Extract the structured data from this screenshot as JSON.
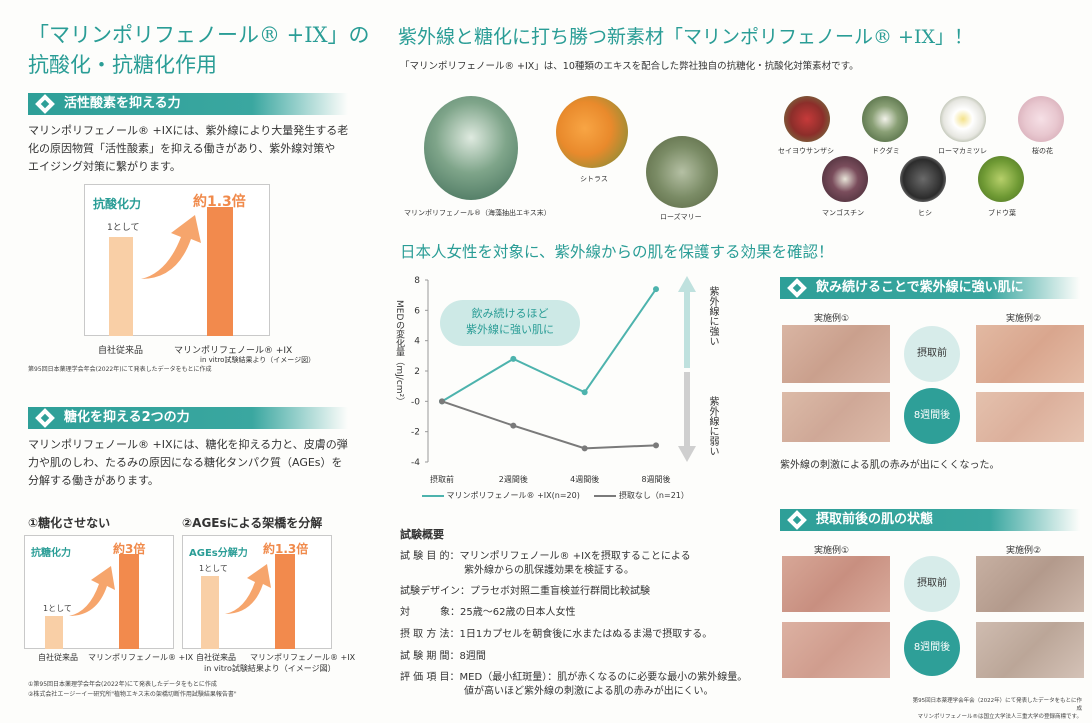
{
  "left": {
    "title_line1": "「マリンポリフェノール® +IX」の",
    "title_line2": "抗酸化・抗糖化作用",
    "sec1": {
      "heading": "活性酸素を抑える力",
      "text": [
        "マリンポリフェノール® +IXには、紫外線により大量発生する老",
        "化の原因物質「活性酸素」を抑える働きがあり、紫外線対策や",
        "エイジング対策に繋がります。"
      ],
      "chart_title": "抗酸化力",
      "badge": "約1.3倍",
      "bar1_label": "1として",
      "x1": "自社従来品",
      "x2": "マリンポリフェノール® +IX",
      "x2_sub": "in vitro試験結果より（イメージ図）",
      "note": "第95回日本薬理学会年会(2022年)にて発表したデータをもとに作成"
    },
    "sec2": {
      "heading": "糖化を抑える2つの力",
      "text": [
        "マリンポリフェノール® +IXには、糖化を抑える力と、皮膚の弾",
        "力や肌のしわ、たるみの原因になる糖化タンパク質（AGEs）を",
        "分解する働きがあります。"
      ],
      "sub1": "①糖化させない",
      "sub2": "②AGEsによる架橋を分解",
      "c1_title": "抗糖化力",
      "c1_badge": "約3倍",
      "c1_bar": "1として",
      "c2_title": "AGEs分解力",
      "c2_badge": "約1.3倍",
      "c2_bar": "1として",
      "x1": "自社従来品",
      "x2": "マリンポリフェノール® +IX",
      "x_sub": "in vitro試験結果より（イメージ図）",
      "notes": [
        "①第95回日本薬理学会年会(2022年)にて発表したデータをもとに作成",
        "②株式会社エージーイー研究所\"植物エキス末の架橋切断作用試験結果報告書\""
      ]
    }
  },
  "right": {
    "title": "紫外線と糖化に打ち勝つ新素材「マリンポリフェノール® +IX」！",
    "subtitle": "「マリンポリフェノール® +IX」は、10種類のエキスを配合した弊社独自の抗糖化・抗酸化対策素材です。",
    "ingredients": [
      "マリンポリフェノール®（海藻抽出エキス末）",
      "シトラス",
      "ローズマリー",
      "セイヨウサンザシ",
      "ドクダミ",
      "ローマカミツレ",
      "桜の花",
      "マンゴスチン",
      "ヒシ",
      "ブドウ葉"
    ],
    "heading2": "日本人女性を対象に、紫外線からの肌を保護する効果を確認！",
    "chart_bubble": [
      "飲み続けるほど",
      "紫外線に強い肌に"
    ],
    "arrow_up": "紫外線に強い",
    "arrow_down": "紫外線に弱い",
    "panel1": {
      "heading": "飲み続けることで紫外線に強い肌に",
      "case1": "実施例①",
      "case2": "実施例②",
      "before": "摂取前",
      "after": "8週間後",
      "caption": "紫外線の刺激による肌の赤みが出にくくなった。"
    },
    "panel2": {
      "heading": "摂取前後の肌の状態",
      "case1": "実施例①",
      "case2": "実施例②",
      "before": "摂取前",
      "after": "8週間後"
    },
    "study": {
      "title": "試験概要",
      "rows": [
        {
          "k": "試 験 目 的：",
          "v": "マリンポリフェノール® +IXを摂取することによる"
        },
        {
          "k": "",
          "v": "紫外線からの肌保護効果を検証する。"
        },
        {
          "k": "試験デザイン：",
          "v": "プラセボ対照二重盲検並行群間比較試験"
        },
        {
          "k": "対　　　象：",
          "v": "25歳〜62歳の日本人女性"
        },
        {
          "k": "摂 取 方 法：",
          "v": "1日1カプセルを朝食後に水またはぬるま湯で摂取する。"
        },
        {
          "k": "試 験 期 間：",
          "v": "8週間"
        },
        {
          "k": "評 価 項 目：",
          "v": "MED（最小紅斑量）：肌が赤くなるのに必要な最小の紫外線量。"
        },
        {
          "k": "",
          "v": "値が高いほど紫外線の刺激による肌の赤みが出にくい。"
        }
      ]
    },
    "footnote": [
      "第95回日本薬理学会年会（2022年）にて発表したデータをもとに作成",
      "マリンポリフェノール®は国立大学法人三重大学の登録商標です。"
    ]
  },
  "chart_data": {
    "type": "line",
    "categories": [
      "摂取前",
      "2週間後",
      "4週間後",
      "8週間後"
    ],
    "series": [
      {
        "name": "マリンポリフェノール® +IX(n=20)",
        "values": [
          0,
          2.8,
          0.6,
          7.4
        ],
        "color": "#4db3ad"
      },
      {
        "name": "摂取なし（n=21）",
        "values": [
          0,
          -1.6,
          -3.1,
          -2.9
        ],
        "color": "#7a7a7a"
      }
    ],
    "ylabel": "MEDの変化量（mJ/cm²）",
    "ylim": [
      -4,
      8
    ],
    "yticks": [
      "8",
      "6",
      "4",
      "2",
      "-0",
      "-2",
      "-4"
    ],
    "legend": "bottom"
  },
  "colors": {
    "teal": "#2a9d96",
    "orange": "#f08a4b",
    "peach": "#f7c9a3"
  }
}
